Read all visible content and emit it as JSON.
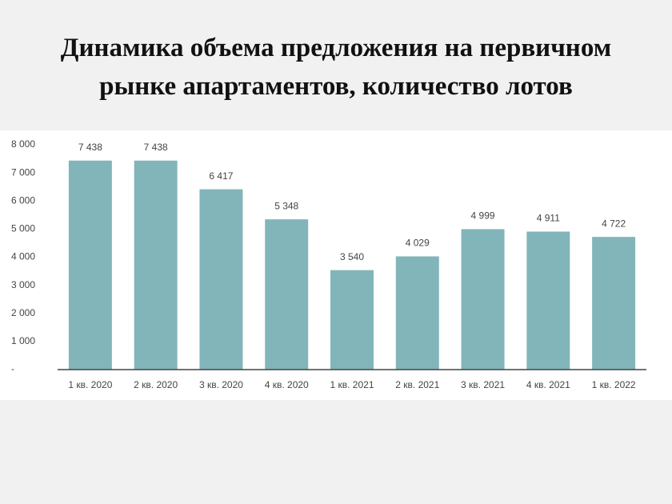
{
  "chart_data": {
    "type": "bar",
    "title": [
      "Динамика объема предложения на первичном",
      "рынке апартаментов, количество лотов"
    ],
    "categories": [
      "1 кв. 2020",
      "2 кв. 2020",
      "3 кв. 2020",
      "4 кв. 2020",
      "1 кв. 2021",
      "2 кв. 2021",
      "3 кв. 2021",
      "4 кв. 2021",
      "1 кв. 2022"
    ],
    "values": [
      7438,
      7438,
      6417,
      5348,
      3540,
      4029,
      4999,
      4911,
      4722
    ],
    "value_labels": [
      "7 438",
      "7 438",
      "6 417",
      "5 348",
      "3 540",
      "4 029",
      "4 999",
      "4 911",
      "4 722"
    ],
    "color": "#82b5b9",
    "ylim": [
      0,
      8000
    ],
    "yticks": [
      {
        "value": 0,
        "label": "-"
      },
      {
        "value": 1000,
        "label": "1 000"
      },
      {
        "value": 2000,
        "label": "2 000"
      },
      {
        "value": 3000,
        "label": "3 000"
      },
      {
        "value": 4000,
        "label": "4 000"
      },
      {
        "value": 5000,
        "label": "5 000"
      },
      {
        "value": 6000,
        "label": "6 000"
      },
      {
        "value": 7000,
        "label": "7 000"
      },
      {
        "value": 8000,
        "label": "8 000"
      }
    ],
    "grid": false
  }
}
